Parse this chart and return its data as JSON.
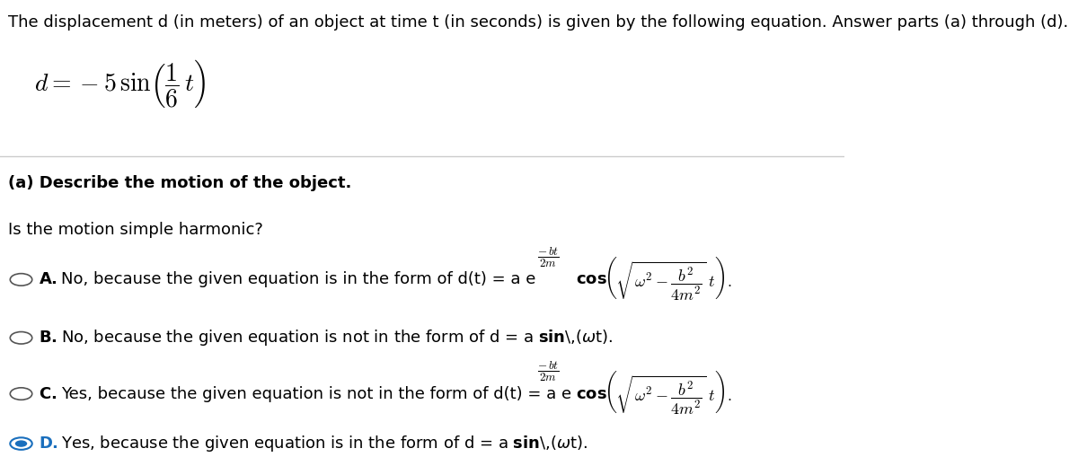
{
  "bg_color": "#ffffff",
  "text_color": "#000000",
  "title_text": "The displacement d (in meters) of an object at time t (in seconds) is given by the following equation. Answer parts (a) through (d).",
  "part_a_label": "(a) Describe the motion of the object.",
  "question": "Is the motion simple harmonic?",
  "selected_option": "D",
  "circle_color": "#1a6fbd",
  "font_size_title": 13,
  "font_size_options": 13
}
